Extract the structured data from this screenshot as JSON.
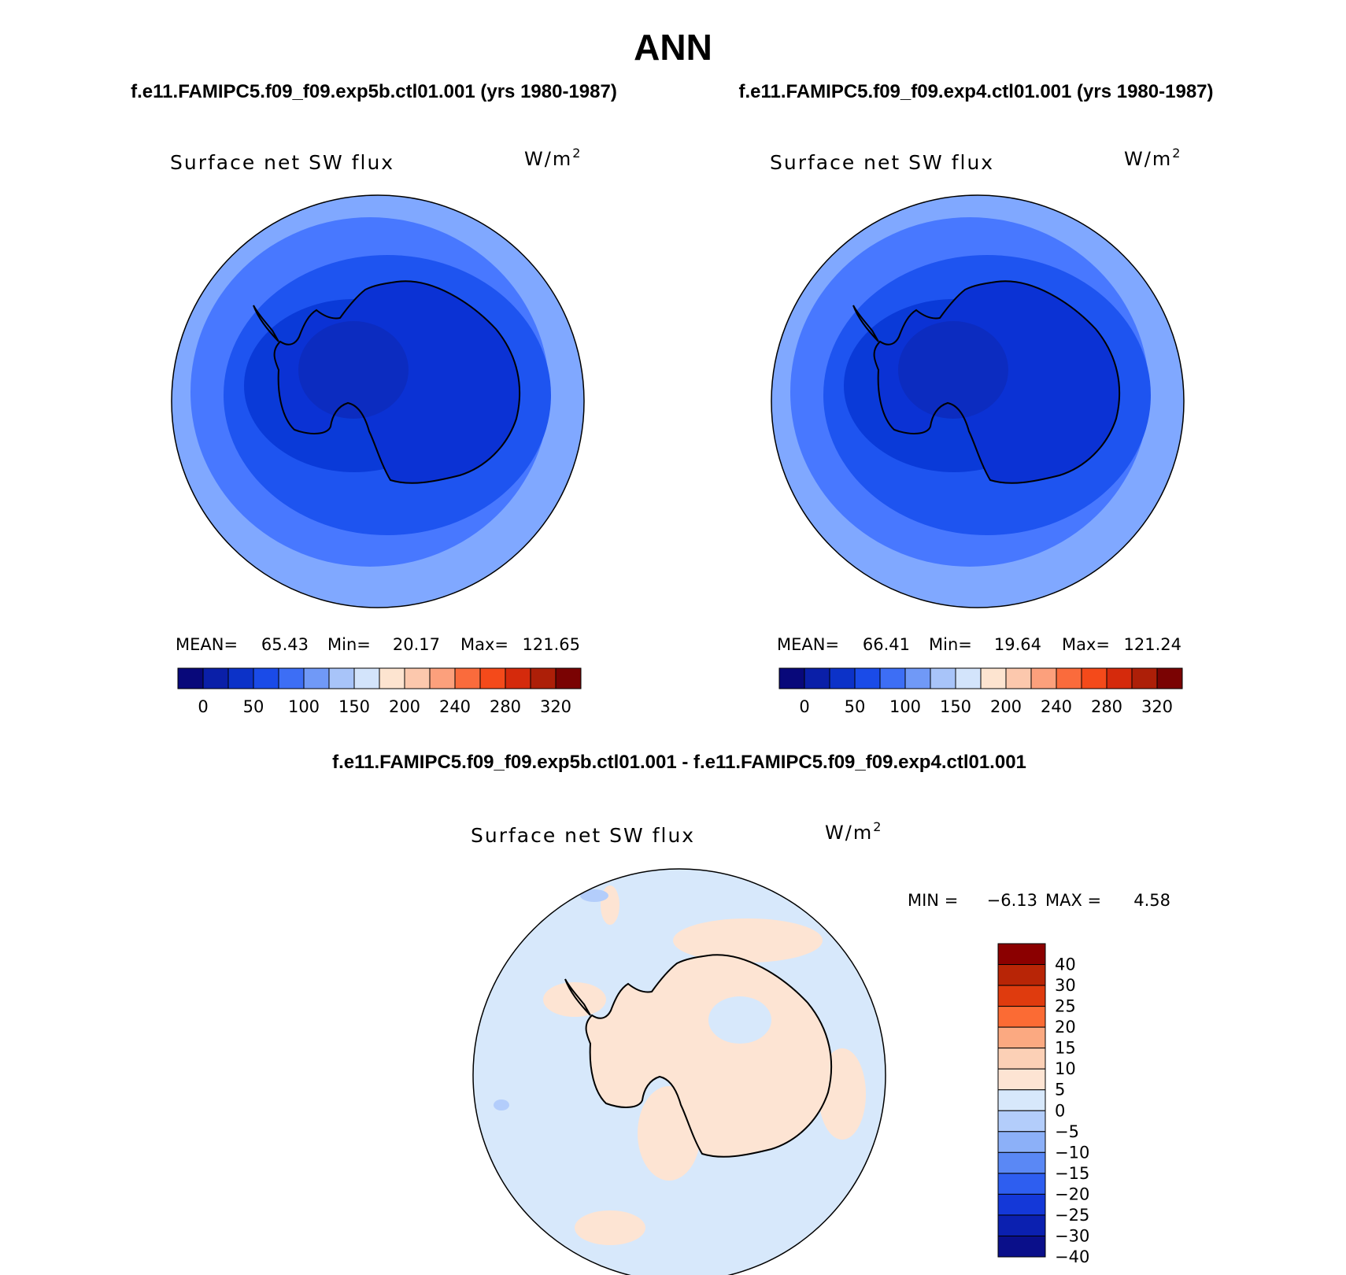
{
  "title": "ANN",
  "top_panels": [
    {
      "case_title": "f.e11.FAMIPC5.f09_f09.exp5b.ctl01.001 (yrs 1980-1987)",
      "variable": "Surface net SW flux",
      "units_base": "W/m",
      "units_exp": "2",
      "mean_label": "MEAN=",
      "mean": "65.43",
      "min_label": "Min=",
      "min": "20.17",
      "max_label": "Max=",
      "max": "121.65"
    },
    {
      "case_title": "f.e11.FAMIPC5.f09_f09.exp4.ctl01.001 (yrs 1980-1987)",
      "variable": "Surface net SW flux",
      "units_base": "W/m",
      "units_exp": "2",
      "mean_label": "MEAN=",
      "mean": "66.41",
      "min_label": "Min=",
      "min": "19.64",
      "max_label": "Max=",
      "max": "121.24"
    }
  ],
  "top_colorbar": {
    "colors": [
      "#08087a",
      "#0a1fa8",
      "#0c32c8",
      "#1a4be8",
      "#3d6ef5",
      "#7099f7",
      "#a8c4f9",
      "#d3e4fb",
      "#fde4d0",
      "#fcc8ad",
      "#fca07c",
      "#fa6b3c",
      "#f44a1a",
      "#d52a0c",
      "#ad1f08",
      "#7a0303"
    ],
    "tick_labels": [
      "0",
      "50",
      "100",
      "150",
      "200",
      "240",
      "280",
      "320"
    ]
  },
  "diff_panel": {
    "case_title": "f.e11.FAMIPC5.f09_f09.exp5b.ctl01.001 - f.e11.FAMIPC5.f09_f09.exp4.ctl01.001",
    "variable": "Surface net SW flux",
    "units_base": "W/m",
    "units_exp": "2",
    "min_label": "MIN =",
    "min": "−6.13",
    "max_label": "MAX =",
    "max": "4.58",
    "colors": [
      "#8b0000",
      "#b82506",
      "#df3b0e",
      "#fb6b34",
      "#fba981",
      "#fcd0b6",
      "#fde4d3",
      "#d7e8fb",
      "#b3cdfb",
      "#8cb0f8",
      "#5a88f5",
      "#2e5ef0",
      "#1438d8",
      "#0b20b0",
      "#0a0f8a"
    ],
    "tick_labels": [
      "40",
      "30",
      "25",
      "20",
      "15",
      "10",
      "5",
      "0",
      "−5",
      "−10",
      "−15",
      "−20",
      "−25",
      "−30",
      "−40"
    ]
  },
  "map_colors": {
    "ocean_far": "#80a8ff",
    "ocean_mid": "#4878ff",
    "ocean_near": "#1e54f0",
    "coast_zone": "#0a3ad8",
    "continent": "#0b32d4",
    "deep_interior": "#0c2cc0",
    "diff_background": "#d7e8fb",
    "diff_positive": "#fde4d3",
    "diff_negative": "#b3cdfb"
  }
}
